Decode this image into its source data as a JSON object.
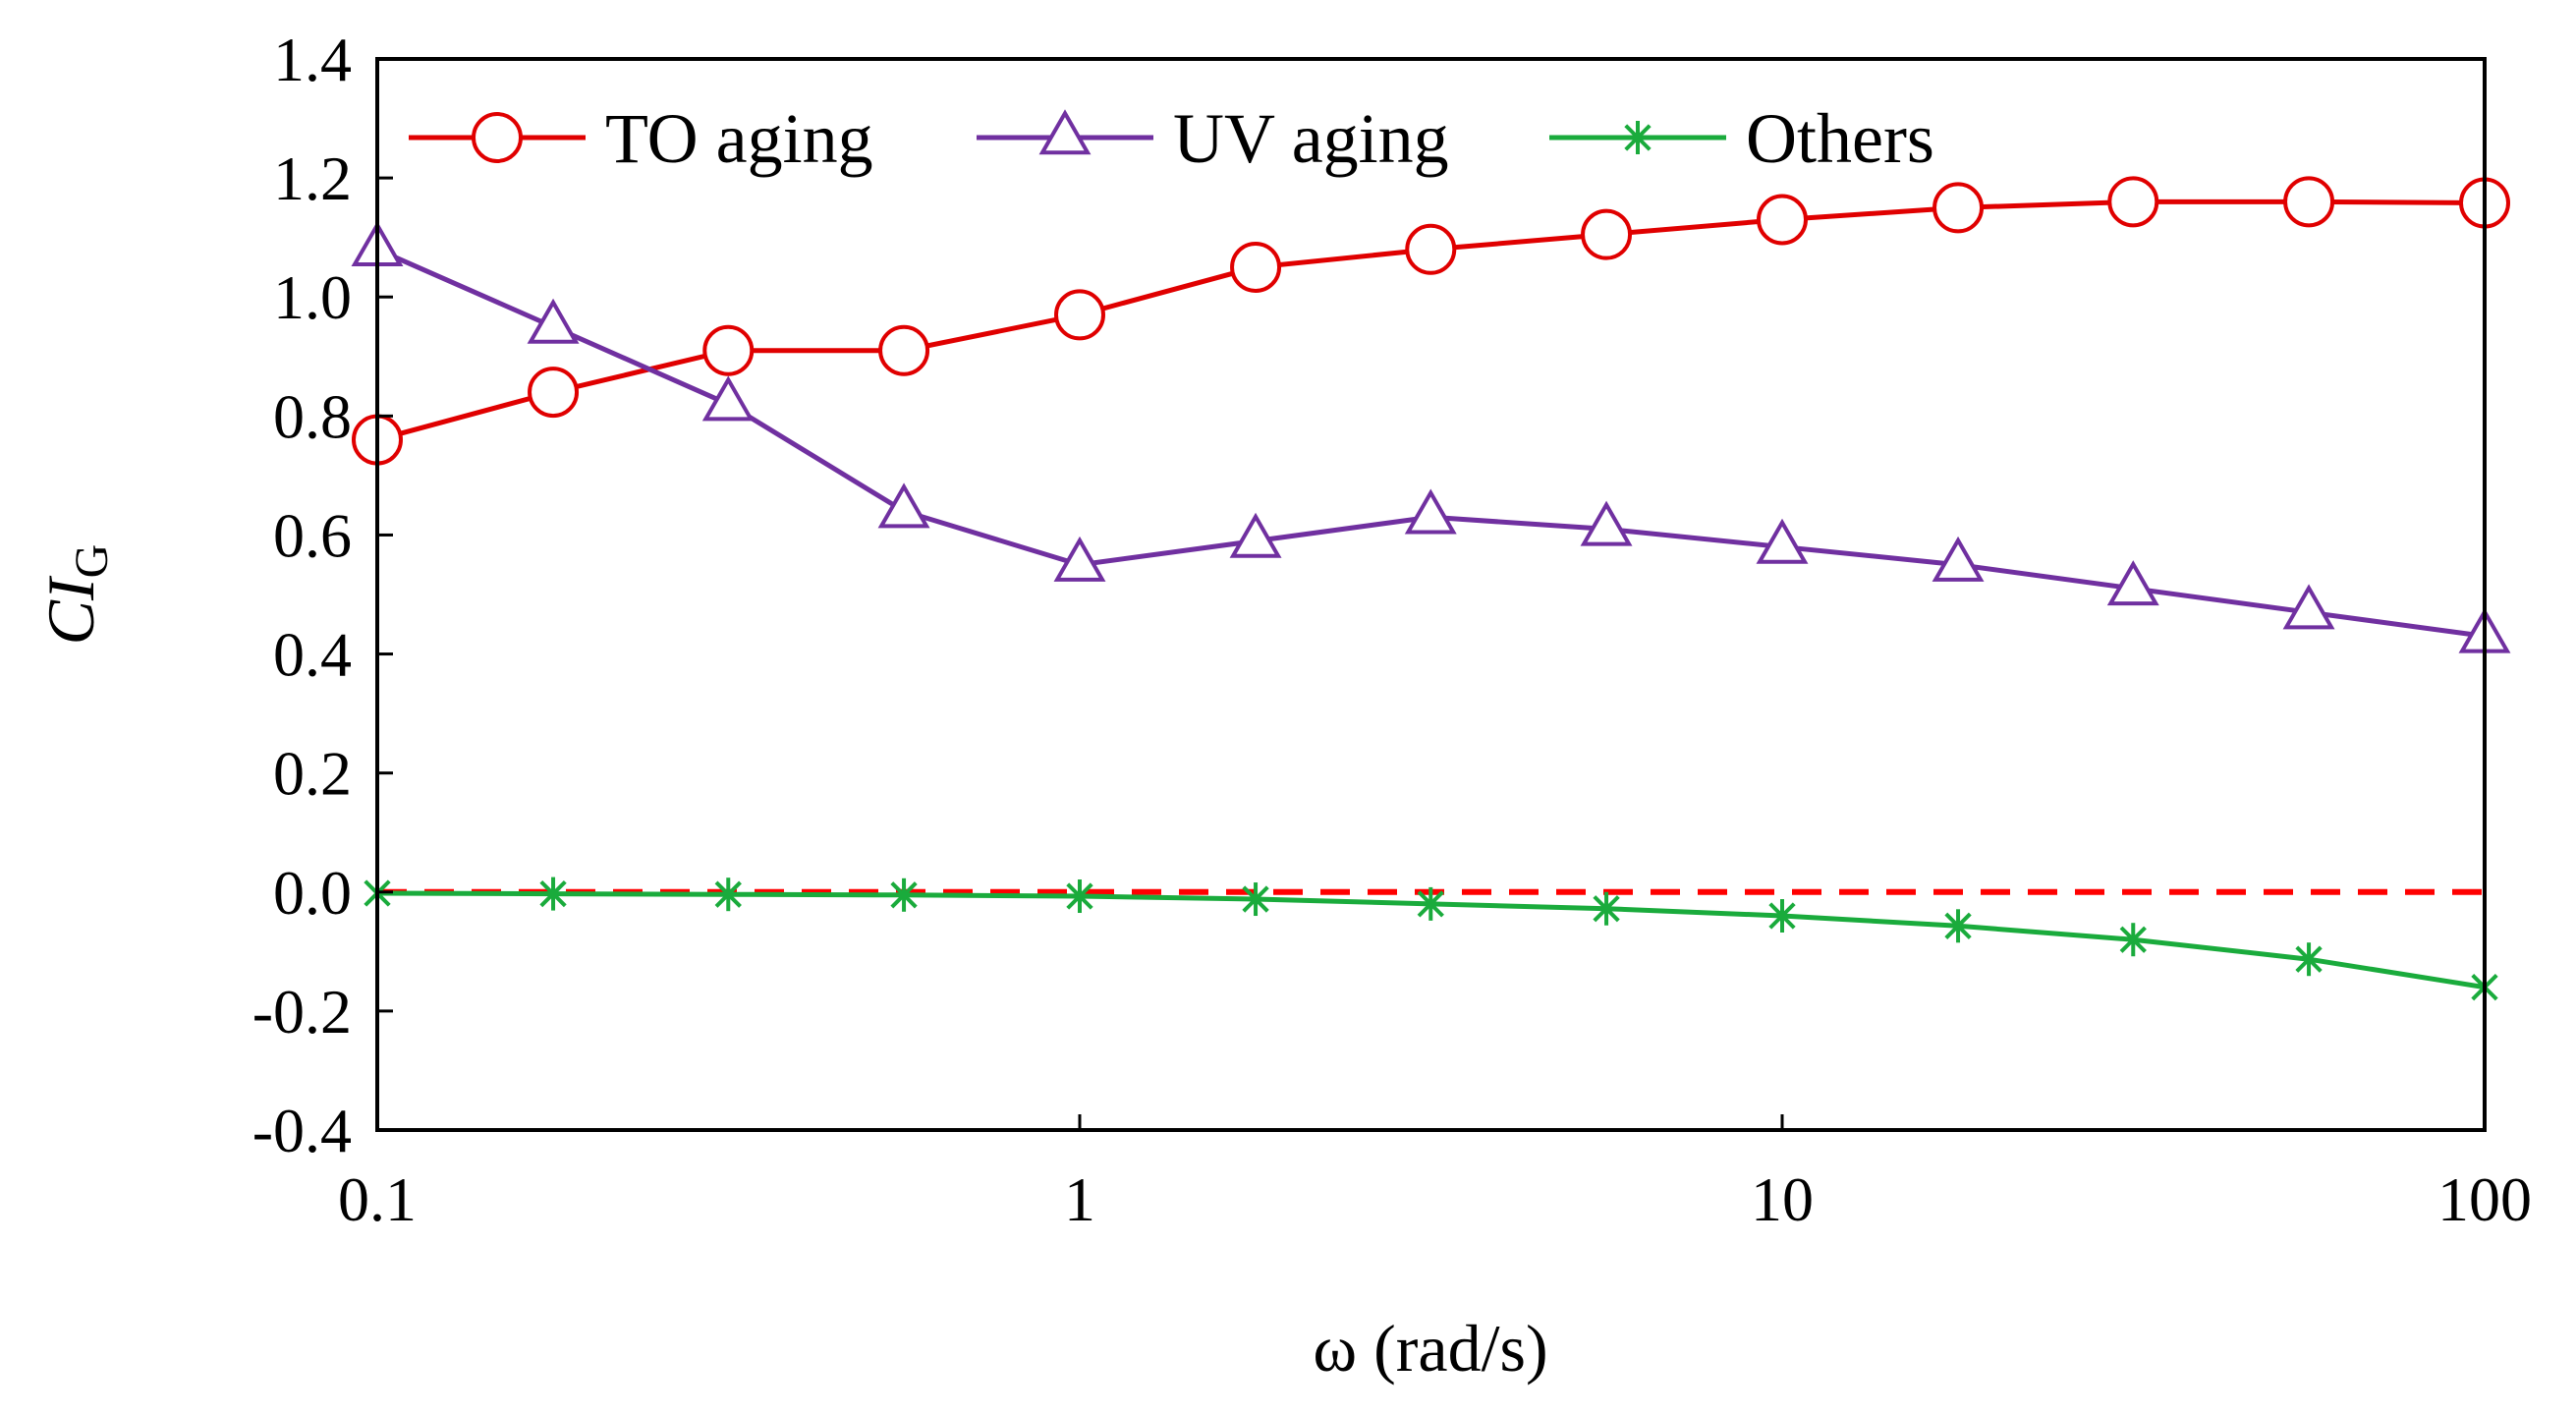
{
  "chart_data": {
    "type": "line",
    "x_scale": "log",
    "xlim": [
      0.1,
      100
    ],
    "ylim": [
      -0.4,
      1.4
    ],
    "xlabel": "ω (rad/s)",
    "ylabel": {
      "main": "CI",
      "sub": "G"
    },
    "x_ticks": [
      {
        "value": 0.1,
        "label": "0.1"
      },
      {
        "value": 1,
        "label": "1"
      },
      {
        "value": 10,
        "label": "10"
      },
      {
        "value": 100,
        "label": "100"
      }
    ],
    "y_ticks": [
      {
        "value": 1.4,
        "label": "1.4"
      },
      {
        "value": 1.2,
        "label": "1.2"
      },
      {
        "value": 1.0,
        "label": "1.0"
      },
      {
        "value": 0.8,
        "label": "0.8"
      },
      {
        "value": 0.6,
        "label": "0.6"
      },
      {
        "value": 0.4,
        "label": "0.4"
      },
      {
        "value": 0.2,
        "label": "0.2"
      },
      {
        "value": 0.0,
        "label": "0.0"
      },
      {
        "value": -0.2,
        "label": "-0.2"
      },
      {
        "value": -0.4,
        "label": "-0.4"
      }
    ],
    "x": [
      0.1,
      0.178,
      0.316,
      0.562,
      1.0,
      1.78,
      3.16,
      5.62,
      10.0,
      17.8,
      31.6,
      56.2,
      100.0
    ],
    "series": [
      {
        "name": "TO aging",
        "color": "#e00000",
        "marker": "circle",
        "values": [
          0.76,
          0.84,
          0.91,
          0.91,
          0.97,
          1.05,
          1.08,
          1.105,
          1.13,
          1.15,
          1.16,
          1.16,
          1.158
        ]
      },
      {
        "name": "UV aging",
        "color": "#7030a0",
        "marker": "triangle",
        "values": [
          1.08,
          0.95,
          0.82,
          0.64,
          0.55,
          0.59,
          0.63,
          0.61,
          0.58,
          0.55,
          0.51,
          0.47,
          0.43
        ]
      },
      {
        "name": "Others",
        "color": "#1aab3c",
        "marker": "asterisk",
        "values": [
          -0.002,
          -0.003,
          -0.004,
          -0.005,
          -0.007,
          -0.012,
          -0.02,
          -0.028,
          -0.04,
          -0.057,
          -0.08,
          -0.113,
          -0.16
        ]
      }
    ],
    "reference_line": {
      "y": 0.0,
      "color": "#ff0000",
      "style": "dashed"
    },
    "legend": {
      "placement": "top-inside"
    }
  }
}
